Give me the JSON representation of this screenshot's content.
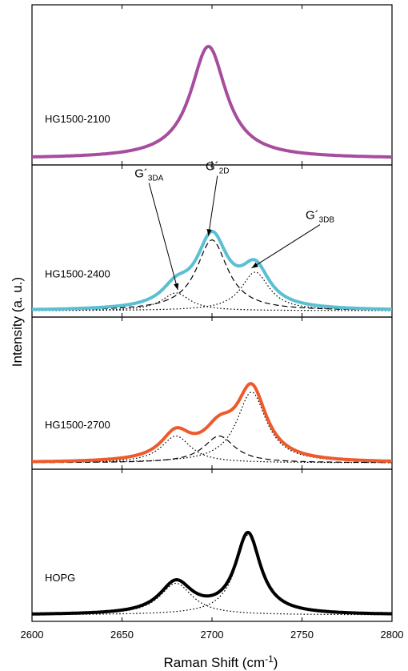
{
  "chart_data": {
    "type": "line",
    "xlabel": "Raman Shift (cm",
    "xlabel_sup": "-1",
    "xlabel_close": ")",
    "ylabel": "Intensity (a. u.)",
    "xlim": [
      2600,
      2800
    ],
    "xticks": [
      2600,
      2650,
      2700,
      2750,
      2800
    ],
    "panels": [
      {
        "label": "HG1500-2100",
        "measured": {
          "color": "#a64d9e",
          "peaks": [
            {
              "center": 2698,
              "height": 1.0,
              "width": 24
            }
          ]
        },
        "fits": [],
        "annotations": []
      },
      {
        "label": "HG1500-2400",
        "measured": {
          "color": "#5bbfd3",
          "peaks": [
            {
              "center": 2680,
              "height": 0.17,
              "width": 19
            },
            {
              "center": 2700,
              "height": 0.68,
              "width": 21
            },
            {
              "center": 2724,
              "height": 0.37,
              "width": 19
            }
          ]
        },
        "fits": [
          {
            "style": "dotted",
            "center": 2680,
            "height": 0.17,
            "width": 19
          },
          {
            "style": "dashed",
            "center": 2700,
            "height": 0.68,
            "width": 21
          },
          {
            "style": "dotted",
            "center": 2724,
            "height": 0.37,
            "width": 19
          }
        ],
        "annotations": [
          {
            "main": "G´",
            "sub": "3DA",
            "text_x": 2665,
            "text_y": 1.28,
            "tip_x": 2681,
            "tip_y": 0.2
          },
          {
            "main": "G´",
            "sub": "2D",
            "text_x": 2703,
            "text_y": 1.35,
            "tip_x": 2698,
            "tip_y": 0.72
          },
          {
            "main": "G´",
            "sub": "3DB",
            "text_x": 2760,
            "text_y": 0.88,
            "tip_x": 2722,
            "tip_y": 0.41
          }
        ]
      },
      {
        "label": "HG1500-2700",
        "measured": {
          "color": "#ee5a2c",
          "peaks": [
            {
              "center": 2680,
              "height": 0.25,
              "width": 20
            },
            {
              "center": 2704,
              "height": 0.25,
              "width": 21
            },
            {
              "center": 2722,
              "height": 0.66,
              "width": 20
            }
          ]
        },
        "fits": [
          {
            "style": "dotted",
            "center": 2680,
            "height": 0.25,
            "width": 20
          },
          {
            "style": "dashed",
            "center": 2704,
            "height": 0.25,
            "width": 21
          },
          {
            "style": "dotted",
            "center": 2722,
            "height": 0.66,
            "width": 20
          }
        ],
        "annotations": []
      },
      {
        "label": "HOPG",
        "measured": {
          "color": "#000000",
          "peaks": [
            {
              "center": 2680,
              "height": 0.3,
              "width": 22
            },
            {
              "center": 2720,
              "height": 0.76,
              "width": 17
            }
          ]
        },
        "fits": [
          {
            "style": "dotted",
            "center": 2680,
            "height": 0.3,
            "width": 22
          },
          {
            "style": "dotted",
            "center": 2720,
            "height": 0.76,
            "width": 17
          }
        ],
        "annotations": []
      }
    ]
  }
}
